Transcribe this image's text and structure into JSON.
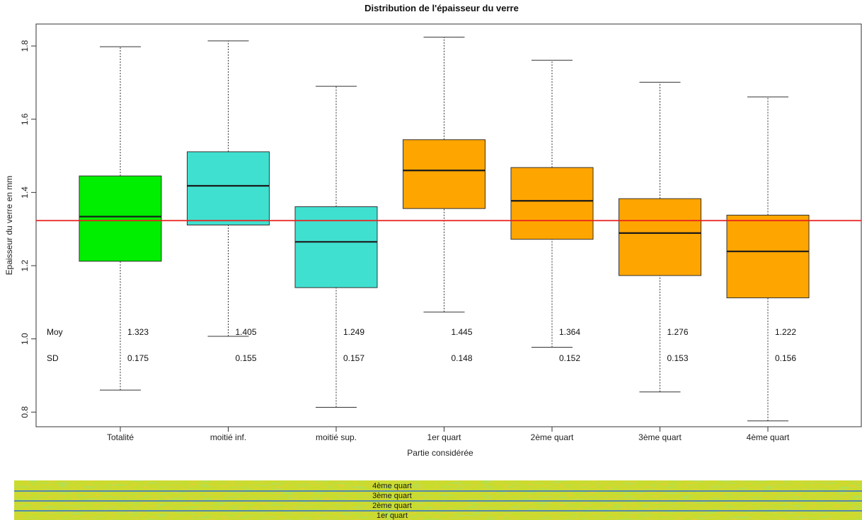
{
  "chart_data": {
    "type": "boxplot",
    "title": "Distribution de l'épaisseur du verre",
    "xlabel": "Partie considérée",
    "ylabel": "Epaisseur du verre en mm",
    "ylim": [
      0.76,
      1.86
    ],
    "yticks": [
      "0.8",
      "1.0",
      "1.2",
      "1.4",
      "1.6",
      "1.8"
    ],
    "grid": false,
    "reference_line": {
      "value": 1.323,
      "color": "#e8211e"
    },
    "stats_labels": {
      "mean": "Moy",
      "sd": "SD"
    },
    "categories": [
      {
        "name": "Totalité",
        "color": "#00ee00",
        "min": 0.86,
        "q1": 1.212,
        "median": 1.334,
        "q3": 1.445,
        "max": 1.798,
        "mean": "1.323",
        "sd": "0.175"
      },
      {
        "name": "moitié inf.",
        "color": "#40e0d0",
        "min": 1.007,
        "q1": 1.311,
        "median": 1.418,
        "q3": 1.511,
        "max": 1.814,
        "mean": "1.405",
        "sd": "0.155"
      },
      {
        "name": "moitié sup.",
        "color": "#40e0d0",
        "min": 0.813,
        "q1": 1.14,
        "median": 1.265,
        "q3": 1.361,
        "max": 1.69,
        "mean": "1.249",
        "sd": "0.157"
      },
      {
        "name": "1er quart",
        "color": "#ffa500",
        "min": 1.073,
        "q1": 1.356,
        "median": 1.46,
        "q3": 1.544,
        "max": 1.824,
        "mean": "1.445",
        "sd": "0.148"
      },
      {
        "name": "2ème quart",
        "color": "#ffa500",
        "min": 0.977,
        "q1": 1.272,
        "median": 1.377,
        "q3": 1.468,
        "max": 1.761,
        "mean": "1.364",
        "sd": "0.152"
      },
      {
        "name": "3ème quart",
        "color": "#ffa500",
        "min": 0.855,
        "q1": 1.173,
        "median": 1.289,
        "q3": 1.383,
        "max": 1.701,
        "mean": "1.276",
        "sd": "0.153"
      },
      {
        "name": "4ème quart",
        "color": "#ffa500",
        "min": 0.776,
        "q1": 1.112,
        "median": 1.239,
        "q3": 1.338,
        "max": 1.661,
        "mean": "1.222",
        "sd": "0.156"
      }
    ]
  },
  "glass_map": {
    "band_labels": [
      "4ème quart",
      "3ème quart",
      "2ème quart",
      "1er quart"
    ],
    "line_color": "#2f6fd6"
  }
}
